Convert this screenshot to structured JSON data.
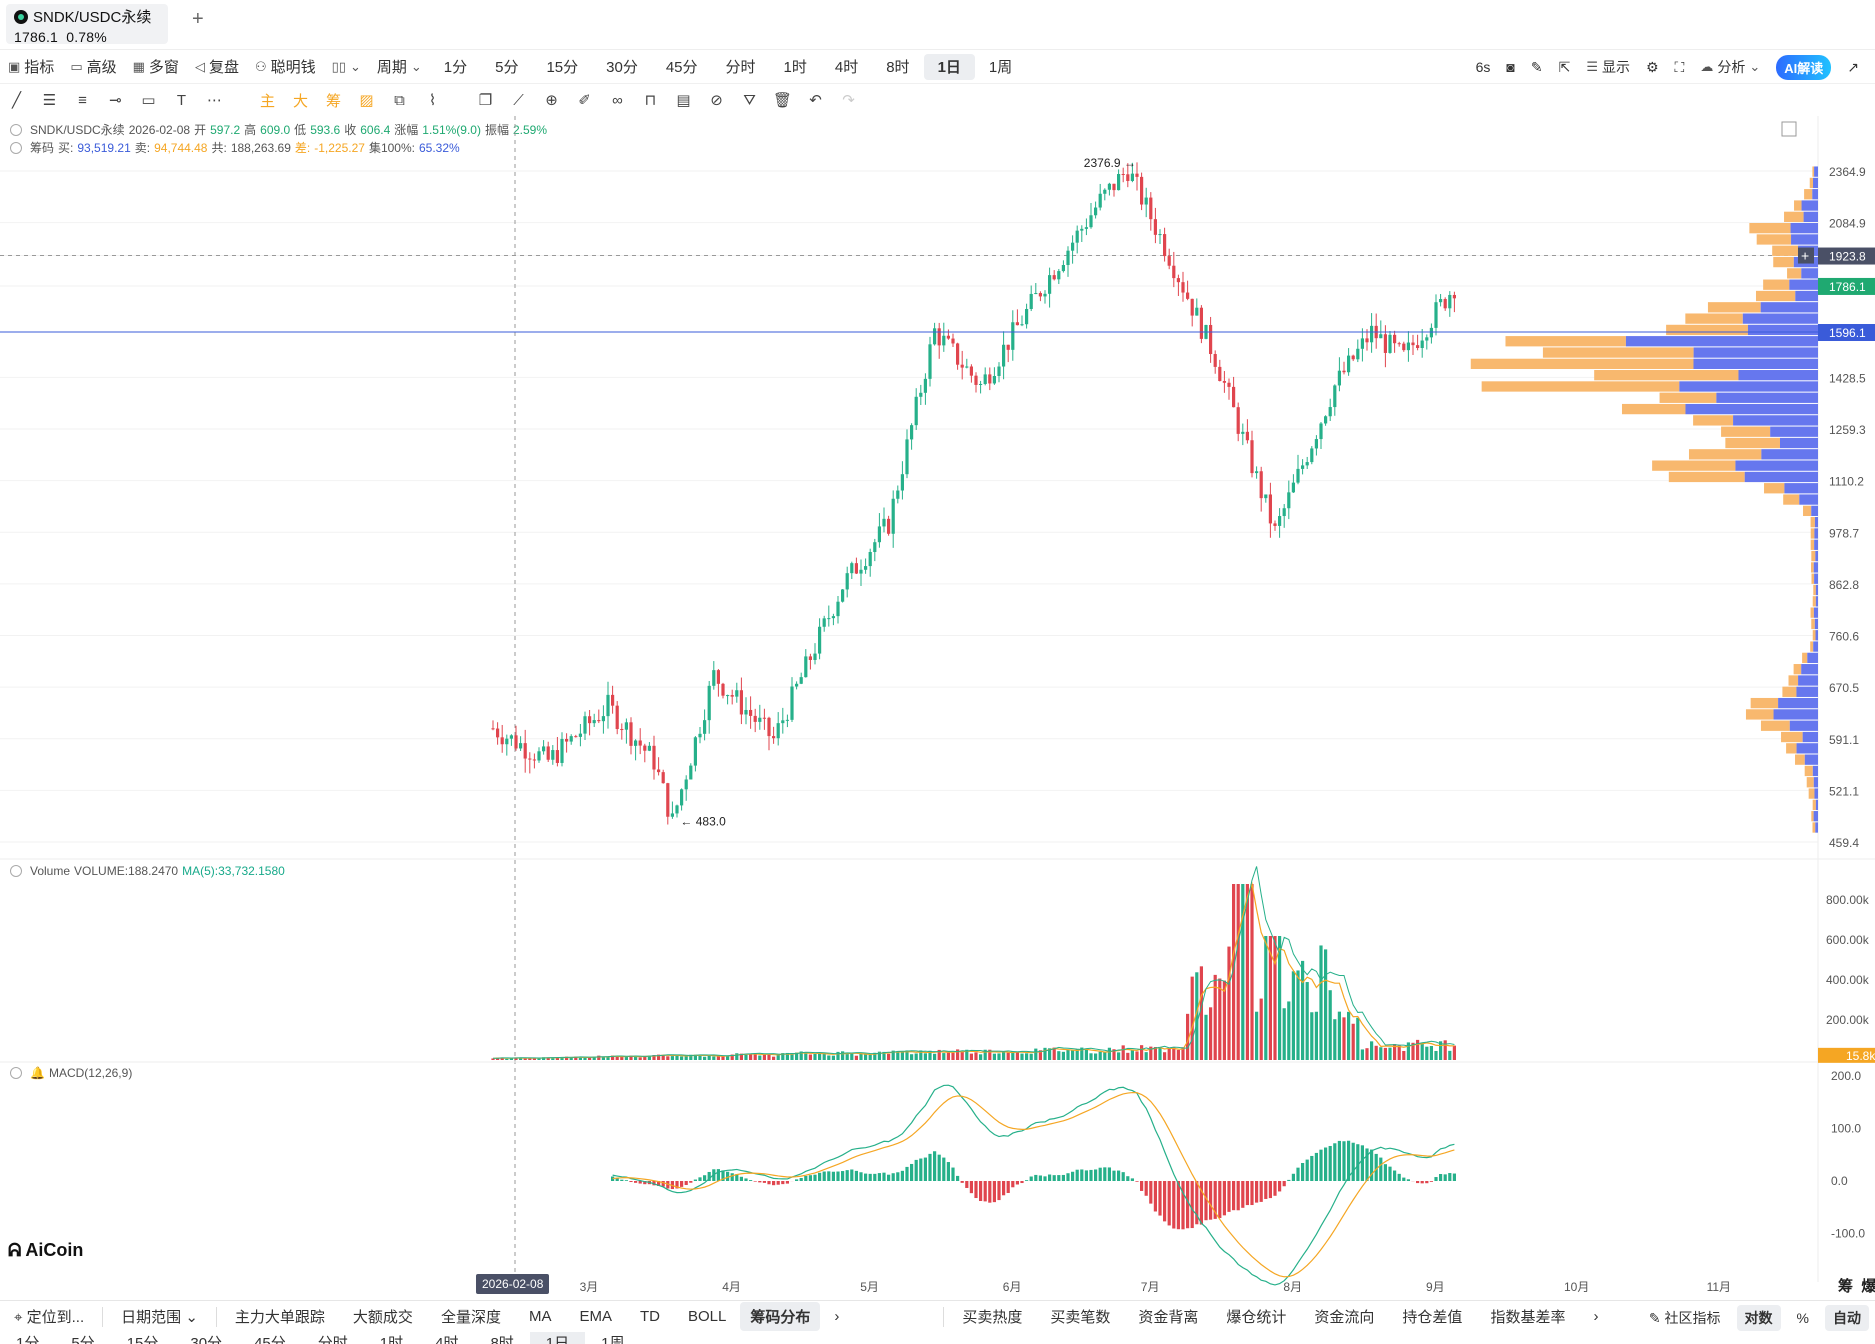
{
  "tab": {
    "symbol": "SNDK/USDC永续",
    "price": "1786.1",
    "change": "0.78%",
    "add": "+"
  },
  "toolbar": {
    "left": [
      "指标",
      "高级",
      "多窗",
      "复盘",
      "聪明钱"
    ],
    "period_label": "周期",
    "periods": [
      "1分",
      "5分",
      "15分",
      "30分",
      "45分",
      "分时",
      "1时",
      "4时",
      "8时",
      "1日",
      "1周"
    ],
    "active_period": "1日",
    "right": {
      "refresh": "6s",
      "display": "显示",
      "analysis": "分析",
      "ai": "AI解读"
    }
  },
  "draw_tools": [
    "主",
    "大",
    "筹"
  ],
  "legend": {
    "name": "SNDK/USDC永续",
    "date": "2026-02-08",
    "open_l": "开",
    "open": "597.2",
    "high_l": "高",
    "high": "609.0",
    "low_l": "低",
    "low": "593.6",
    "close_l": "收",
    "close": "606.4",
    "chg_l": "涨幅",
    "chg": "1.51%(9.0)",
    "amp_l": "振幅",
    "amp": "2.59%"
  },
  "chips_legend": {
    "name": "筹码",
    "buy_l": "买:",
    "buy": "93,519.21",
    "sell_l": "卖:",
    "sell": "94,744.48",
    "total_l": "共:",
    "total": "188,263.69",
    "diff_l": "差:",
    "diff": "-1,225.27",
    "conc_l": "集100%:",
    "conc": "65.32%"
  },
  "volume_legend": {
    "name": "Volume",
    "vol": "VOLUME:188.2470",
    "ma": "MA(5):33,732.1580"
  },
  "macd_legend": {
    "name": "MACD(12,26,9)"
  },
  "price_axis": [
    "2364.9",
    "2084.9",
    "1923.8",
    "1786.1",
    "1596.1",
    "1428.5",
    "1259.3",
    "1110.2",
    "978.7",
    "862.8",
    "760.6",
    "670.5",
    "591.1",
    "521.1",
    "459.4"
  ],
  "price_marks": {
    "crosshair": "1923.8",
    "last": "1786.1",
    "line": "1596.1",
    "high_label": "2376.9",
    "low_label": "483.0"
  },
  "volume_axis": [
    "800.00k",
    "600.00k",
    "400.00k",
    "200.00k",
    "15.8k"
  ],
  "macd_axis": [
    "200.0",
    "100.0",
    "0.0",
    "-100.0"
  ],
  "x_axis": [
    "3月",
    "4月",
    "5月",
    "6月",
    "7月",
    "8月",
    "9月",
    "10月",
    "11月"
  ],
  "x_cursor": "2026-02-08",
  "x_right": [
    "筹",
    "爆"
  ],
  "brand": "AiCoin",
  "bottom": {
    "locate": "定位到...",
    "range": "日期范围",
    "indicators": [
      "主力大单跟踪",
      "大额成交",
      "全量深度",
      "MA",
      "EMA",
      "TD",
      "BOLL",
      "筹码分布"
    ],
    "active_indicator": "筹码分布",
    "indicators2": [
      "买卖热度",
      "买卖笔数",
      "资金背离",
      "爆仓统计",
      "资金流向",
      "持仓差值",
      "指数基差率"
    ],
    "right": {
      "community": "社区指标",
      "log": "对数",
      "pct": "%",
      "auto": "自动"
    }
  },
  "bottom2": [
    "1分",
    "5分",
    "15分",
    "30分",
    "45分",
    "分时",
    "1时",
    "4时",
    "8时",
    "1日",
    "1周"
  ],
  "chart_data": {
    "type": "candlestick",
    "symbol": "SNDK/USDC永续",
    "interval": "1日",
    "log_scale": true,
    "price_range": [
      459.4,
      2364.9
    ],
    "close_path": [
      [
        "2026-02-08",
        606.4
      ],
      [
        "2026-02-20",
        560
      ],
      [
        "2026-03-05",
        640
      ],
      [
        "2026-03-15",
        560
      ],
      [
        "2026-03-19",
        483
      ],
      [
        "2026-03-28",
        690
      ],
      [
        "2026-04-10",
        590
      ],
      [
        "2026-04-25",
        860
      ],
      [
        "2026-05-05",
        1000
      ],
      [
        "2026-05-15",
        1600
      ],
      [
        "2026-05-25",
        1400
      ],
      [
        "2026-06-08",
        1800
      ],
      [
        "2026-06-20",
        2200
      ],
      [
        "2026-06-26",
        2376.9
      ],
      [
        "2026-07-05",
        1923.8
      ],
      [
        "2026-07-15",
        1500
      ],
      [
        "2026-07-28",
        978.7
      ],
      [
        "2026-08-10",
        1400
      ],
      [
        "2026-08-18",
        1596.1
      ],
      [
        "2026-08-25",
        1500
      ],
      [
        "2026-09-05",
        1786.1
      ]
    ],
    "volume_axis_k": [
      800,
      600,
      400,
      200
    ],
    "macd_axis": [
      200,
      100,
      0,
      -100
    ],
    "colors": {
      "up": "#26b08a",
      "down": "#e0454e",
      "ma": "#f5a623",
      "buy": "#6677ee",
      "sell": "#f8b86e",
      "last": "#1fa971",
      "line": "#3a5bd9"
    }
  }
}
